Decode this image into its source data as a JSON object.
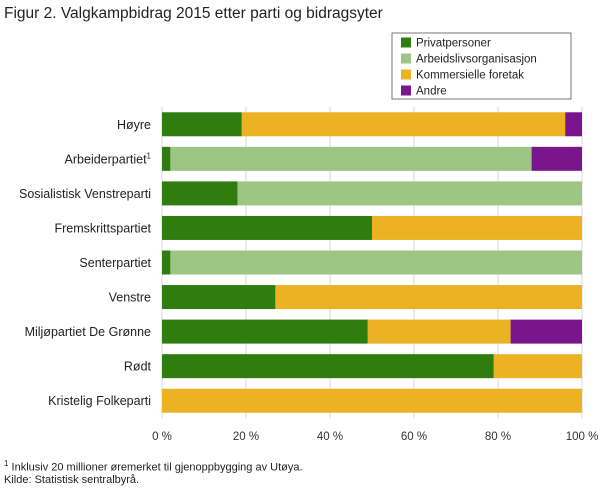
{
  "chart_data": {
    "type": "bar",
    "orientation": "horizontal",
    "stacked": "percent",
    "title": "Figur 2. Valgkampbidrag 2015 etter parti og bidragsyter",
    "categories": [
      {
        "label": "Høyre",
        "sup": ""
      },
      {
        "label": "Arbeiderpartiet",
        "sup": "1"
      },
      {
        "label": "Sosialistisk Venstreparti",
        "sup": ""
      },
      {
        "label": "Fremskrittspartiet",
        "sup": ""
      },
      {
        "label": "Senterpartiet",
        "sup": ""
      },
      {
        "label": "Venstre",
        "sup": ""
      },
      {
        "label": "Miljøpartiet De Grønne",
        "sup": ""
      },
      {
        "label": "Rødt",
        "sup": ""
      },
      {
        "label": "Kristelig Folkeparti",
        "sup": ""
      }
    ],
    "series": [
      {
        "name": "Privatpersoner",
        "color": "#2e7d0e",
        "values": [
          19,
          2,
          18,
          50,
          2,
          27,
          49,
          79,
          0
        ]
      },
      {
        "name": "Arbeidslivsorganisasjon",
        "color": "#9dc583",
        "values": [
          0,
          86,
          82,
          0,
          98,
          0,
          0,
          0,
          0
        ]
      },
      {
        "name": "Kommersielle foretak",
        "color": "#ebb223",
        "values": [
          77,
          0,
          0,
          50,
          0,
          73,
          34,
          21,
          100
        ]
      },
      {
        "name": "Andre",
        "color": "#7a168d",
        "values": [
          4,
          12,
          0,
          0,
          0,
          0,
          17,
          0,
          0
        ]
      }
    ],
    "xlim": [
      0,
      100
    ],
    "xticks": [
      "0 %",
      "20 %",
      "40 %",
      "60 %",
      "80 %",
      "100 %"
    ],
    "xlabel": "",
    "ylabel": "",
    "grid": true,
    "legend": "top-right"
  },
  "footnotes": {
    "note_sup": "1",
    "note": "Inklusiv 20 millioner øremerket til  gjenoppbygging av Utøya.",
    "source": "Kilde: Statistisk sentralbyrå."
  }
}
